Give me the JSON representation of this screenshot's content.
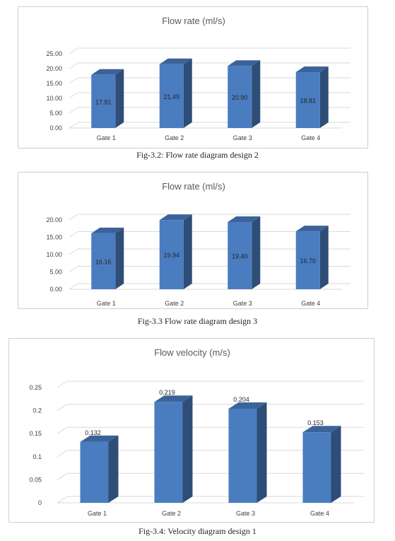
{
  "chart_data": [
    {
      "type": "bar",
      "title": "Flow rate (ml/s)",
      "categories": [
        "Gate  1",
        "Gate  2",
        "Gate  3",
        "Gate  4"
      ],
      "values": [
        17.91,
        21.49,
        20.9,
        18.81
      ],
      "data_labels": [
        "17.91",
        "21.49",
        "20.90",
        "18.81"
      ],
      "yticks": [
        "0.00",
        "5.00",
        "10.00",
        "15.00",
        "20.00",
        "25.00"
      ],
      "ylim": [
        0,
        25
      ],
      "grid": true,
      "bar_color": "#4a7cc0",
      "caption": "Fig-3.2: Flow rate diagram design 2"
    },
    {
      "type": "bar",
      "title": "Flow rate (ml/s)",
      "categories": [
        "Gate  1",
        "Gate  2",
        "Gate  3",
        "Gate  4"
      ],
      "values": [
        16.16,
        19.94,
        19.4,
        16.7
      ],
      "data_labels": [
        "16.16",
        "19.94",
        "19.40",
        "16.70"
      ],
      "yticks": [
        "0.00",
        "5.00",
        "10.00",
        "15.00",
        "20.00"
      ],
      "ylim": [
        0,
        20
      ],
      "grid": true,
      "bar_color": "#4a7cc0",
      "caption": "Fig-3.3 Flow rate diagram design 3"
    },
    {
      "type": "bar",
      "title": "Flow velocity (m/s)",
      "categories": [
        "Gate  1",
        "Gate  2",
        "Gate  3",
        "Gate  4"
      ],
      "values": [
        0.132,
        0.219,
        0.204,
        0.153
      ],
      "data_labels": [
        "0.132",
        "0.219",
        "0.204",
        "0.153"
      ],
      "yticks": [
        "0",
        "0.05",
        "0.1",
        "0.15",
        "0.2",
        "0.25"
      ],
      "ylim": [
        0,
        0.25
      ],
      "grid": true,
      "bar_color": "#4a7cc0",
      "caption": "Fig-3.4: Velocity diagram design 1"
    }
  ]
}
